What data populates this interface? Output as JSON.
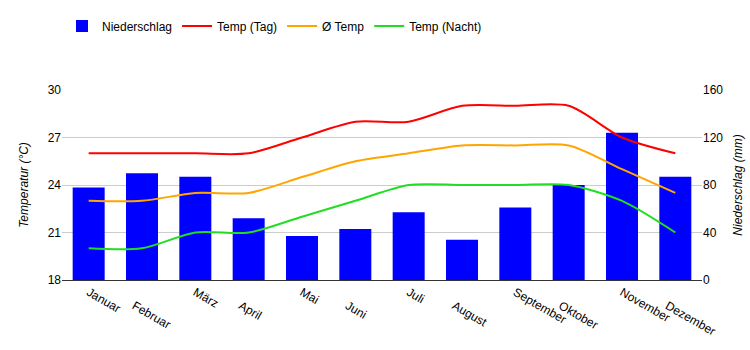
{
  "chart_data": {
    "type": "bar",
    "categories": [
      "Januar",
      "Februar",
      "März",
      "April",
      "Mai",
      "Juni",
      "Juli",
      "August",
      "September",
      "Oktober",
      "November",
      "Dezember"
    ],
    "series": [
      {
        "name": "Niederschlag",
        "type": "bar",
        "axis": "y2",
        "color": "#0000ff",
        "values": [
          78,
          90,
          87,
          52,
          37,
          43,
          57,
          34,
          61,
          80,
          124,
          87
        ]
      },
      {
        "name": "Temp (Tag)",
        "type": "line",
        "color": "#ff0000",
        "line_style": "solid",
        "values": [
          26,
          26,
          26,
          26,
          27,
          28,
          28,
          29,
          29,
          29,
          27,
          26
        ]
      },
      {
        "name": "Ø Temp",
        "type": "line",
        "color": "#ffa500",
        "line_style": "solid",
        "values": [
          23,
          23,
          23.5,
          23.5,
          24.5,
          25.5,
          26,
          26.5,
          26.5,
          26.5,
          25,
          23.5
        ]
      },
      {
        "name": "Temp (Nacht)",
        "type": "line",
        "color": "#22dd22",
        "line_style": "solid",
        "values": [
          20,
          20,
          21,
          21,
          22,
          23,
          24,
          24,
          24,
          24,
          23,
          21
        ]
      }
    ],
    "y_label": "Temperatur (°C)",
    "y2_label": "Niederschlag (mm)",
    "ylim": [
      18,
      30
    ],
    "yticks": [
      18,
      21,
      24,
      27,
      30
    ],
    "y2lim": [
      0,
      160
    ],
    "y2ticks": [
      0,
      40,
      80,
      120,
      160
    ],
    "grid": true,
    "legend": "top left"
  }
}
